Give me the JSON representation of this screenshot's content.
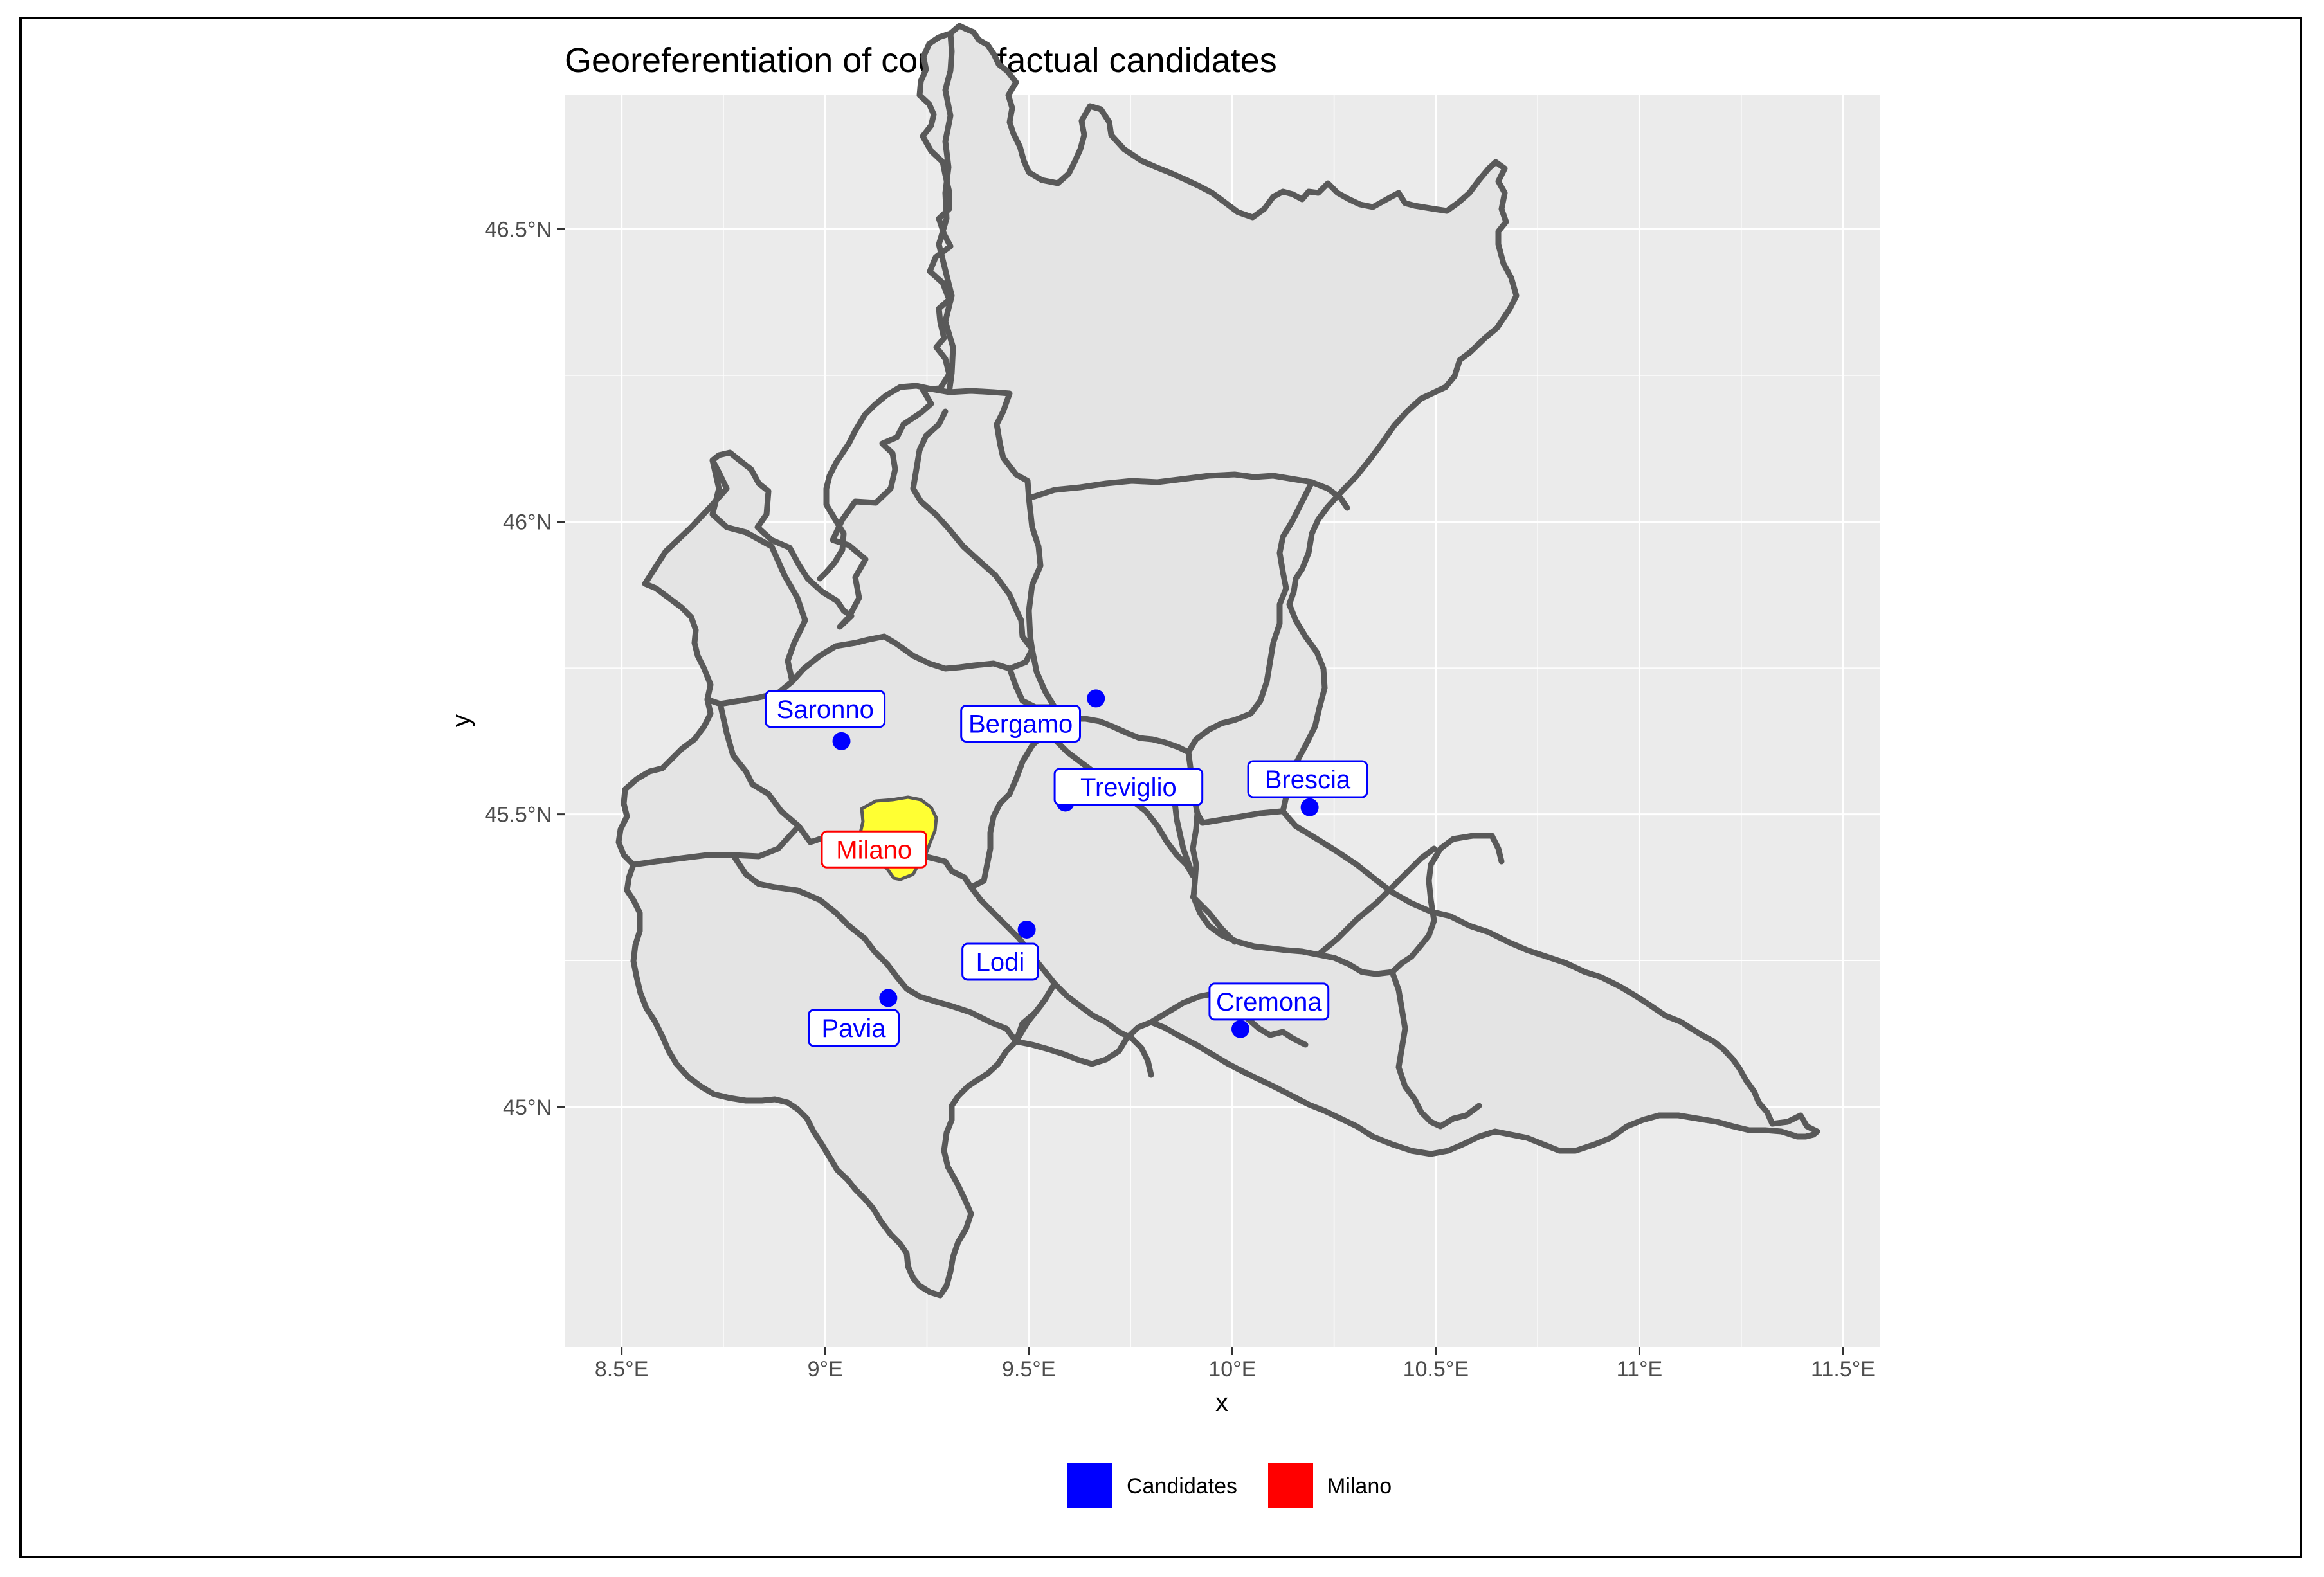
{
  "title": "Georeferentiation of counterfactual candidates",
  "axes": {
    "xlabel": "x",
    "ylabel": "y",
    "x_ticks": [
      {
        "value": 8.5,
        "label": "8.5°E"
      },
      {
        "value": 9.0,
        "label": "9°E"
      },
      {
        "value": 9.5,
        "label": "9.5°E"
      },
      {
        "value": 10.0,
        "label": "10°E"
      },
      {
        "value": 10.5,
        "label": "10.5°E"
      },
      {
        "value": 11.0,
        "label": "11°E"
      },
      {
        "value": 11.5,
        "label": "11.5°E"
      }
    ],
    "y_ticks": [
      {
        "value": 45.0,
        "label": "45°N"
      },
      {
        "value": 45.5,
        "label": "45.5°N"
      },
      {
        "value": 46.0,
        "label": "46°N"
      },
      {
        "value": 46.5,
        "label": "46.5°N"
      }
    ],
    "xlim": [
      8.36,
      11.59
    ],
    "ylim": [
      44.59,
      46.73
    ],
    "grid": true
  },
  "legend": {
    "placement": "bottom",
    "items": [
      {
        "label": "Candidates",
        "color": "#0000FF"
      },
      {
        "label": "Milano",
        "color": "#FF0000"
      }
    ]
  },
  "colors": {
    "panel": "#EBEBEB",
    "province_fill": "#E4E4E4",
    "province_border": "#595959",
    "milano_fill": "#FFFF33",
    "candidate": "#0000FF",
    "milano_label": "#FF0000"
  },
  "cities": [
    {
      "name": "Saronno",
      "lon": 9.04,
      "lat": 45.625,
      "group": "Candidates",
      "label_lon": 9.0,
      "label_lat": 45.68
    },
    {
      "name": "Bergamo",
      "lon": 9.665,
      "lat": 45.698,
      "group": "Candidates",
      "label_lon": 9.48,
      "label_lat": 45.655
    },
    {
      "name": "Treviglio",
      "lon": 9.59,
      "lat": 45.52,
      "group": "Candidates",
      "label_lon": 9.745,
      "label_lat": 45.547
    },
    {
      "name": "Brescia",
      "lon": 10.19,
      "lat": 45.512,
      "group": "Candidates",
      "label_lon": 10.185,
      "label_lat": 45.56
    },
    {
      "name": "Milano",
      "lon": 9.19,
      "lat": 45.46,
      "group": "Milano",
      "label_lon": 9.12,
      "label_lat": 45.44
    },
    {
      "name": "Lodi",
      "lon": 9.495,
      "lat": 45.303,
      "group": "Candidates",
      "label_lon": 9.43,
      "label_lat": 45.248
    },
    {
      "name": "Pavia",
      "lon": 9.155,
      "lat": 45.186,
      "group": "Candidates",
      "label_lon": 9.07,
      "label_lat": 45.135
    },
    {
      "name": "Cremona",
      "lon": 10.02,
      "lat": 45.133,
      "group": "Candidates",
      "label_lon": 10.09,
      "label_lat": 45.18
    }
  ]
}
